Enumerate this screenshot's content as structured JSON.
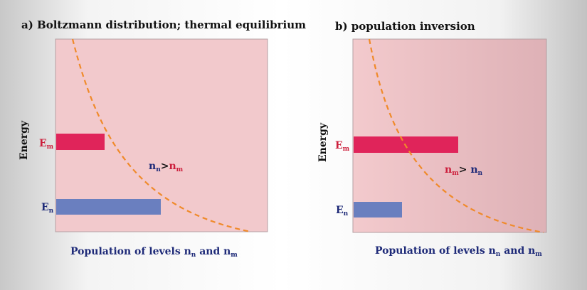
{
  "panel_a": {
    "title": "a) Boltzmann distribution; thermal equilibrium",
    "y_axis_label": "Energy",
    "x_axis_label": "Population of levels n",
    "x_axis_label_sub1": "n",
    "x_axis_label_and": " and  n",
    "x_axis_label_sub2": "m",
    "level_m": {
      "label": "E",
      "sub": "m",
      "color": "#e0245a"
    },
    "level_n": {
      "label": "E",
      "sub": "n",
      "color": "#6a7fbf"
    },
    "relation": {
      "left": "n",
      "left_sub": "n",
      "op": ">",
      "right": "n",
      "right_sub": "m"
    }
  },
  "panel_b": {
    "title": "b) population inversion",
    "y_axis_label": "Energy",
    "x_axis_label": "Population of levels n",
    "x_axis_label_sub1": "n",
    "x_axis_label_and": " and  n",
    "x_axis_label_sub2": "m",
    "level_m": {
      "label": "E",
      "sub": "m",
      "color": "#e0245a"
    },
    "level_n": {
      "label": "E",
      "sub": "n",
      "color": "#6a7fbf"
    },
    "relation": {
      "left": "n",
      "left_sub": "m",
      "op": "> ",
      "right": "n",
      "right_sub": "n"
    }
  },
  "colors": {
    "plot_bg": "#f2c9cc",
    "curve": "#f08a2a",
    "navy": "#1e2a78",
    "red": "#cc1f3c"
  }
}
